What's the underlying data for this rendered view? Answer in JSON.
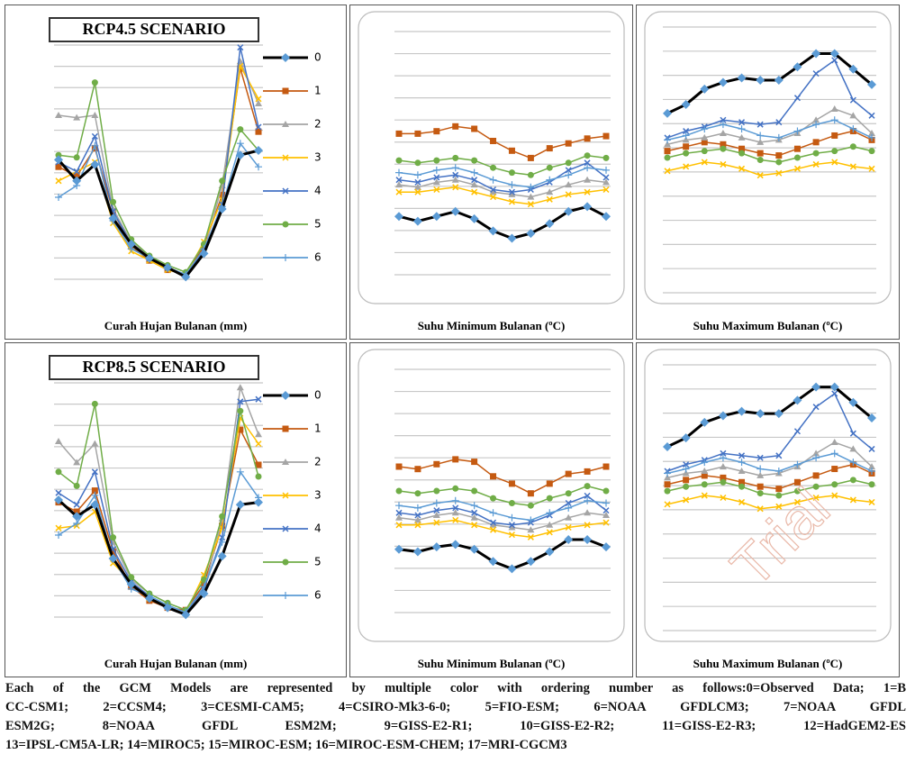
{
  "chart_data": [
    {
      "type": "line",
      "title": "RCP4.5 SCENARIO",
      "xlabel": "Curah Hujan Bulanan (mm)",
      "legend": true,
      "categories": [
        null,
        null,
        null,
        null,
        null,
        null,
        null,
        null,
        null,
        null,
        null,
        null
      ],
      "ylim": [
        0,
        10
      ],
      "series": [
        {
          "name": "0",
          "color": "#000000",
          "marker": "diamond",
          "marker_color": "#5b9bd5",
          "values": [
            5.1,
            4.2,
            4.9,
            2.6,
            1.5,
            0.9,
            0.5,
            0.1,
            1.1,
            3.0,
            5.3,
            5.5
          ]
        },
        {
          "name": "1",
          "color": "#c55a11",
          "marker": "square",
          "values": [
            4.8,
            4.4,
            5.6,
            2.9,
            1.4,
            0.8,
            0.4,
            0.2,
            1.4,
            3.6,
            9.0,
            6.3
          ]
        },
        {
          "name": "2",
          "color": "#a5a5a5",
          "marker": "triangle",
          "values": [
            7.0,
            6.9,
            7.0,
            3.0,
            1.6,
            1.0,
            0.6,
            0.3,
            1.2,
            4.0,
            9.3,
            7.5
          ]
        },
        {
          "name": "3",
          "color": "#ffc000",
          "marker": "x",
          "values": [
            4.2,
            4.6,
            5.0,
            2.4,
            1.2,
            0.8,
            0.4,
            0.2,
            1.6,
            3.4,
            9.1,
            7.7
          ]
        },
        {
          "name": "4",
          "color": "#4472c4",
          "marker": "x",
          "values": [
            5.0,
            4.6,
            6.1,
            2.9,
            1.5,
            0.9,
            0.5,
            0.2,
            1.2,
            3.2,
            9.9,
            6.5
          ]
        },
        {
          "name": "5",
          "color": "#70ad47",
          "marker": "circle",
          "values": [
            5.3,
            5.2,
            8.4,
            3.3,
            1.7,
            1.0,
            0.6,
            0.3,
            1.5,
            4.2,
            6.4,
            5.5
          ]
        },
        {
          "name": "6",
          "color": "#5b9bd5",
          "marker": "plus",
          "values": [
            3.5,
            4.0,
            5.7,
            2.5,
            1.3,
            0.9,
            0.5,
            0.2,
            1.3,
            3.1,
            5.8,
            4.8
          ]
        }
      ]
    },
    {
      "type": "line",
      "xlabel": "Suhu Minimum Bulanan (ºC)",
      "legend": false,
      "categories": [
        null,
        null,
        null,
        null,
        null,
        null,
        null,
        null,
        null,
        null,
        null,
        null
      ],
      "ylim": [
        0,
        10
      ],
      "series": [
        {
          "color": "#000000",
          "marker": "diamond",
          "marker_color": "#5b9bd5",
          "values": [
            2.4,
            2.2,
            2.4,
            2.6,
            2.3,
            1.8,
            1.5,
            1.7,
            2.1,
            2.6,
            2.8,
            2.4
          ]
        },
        {
          "color": "#c55a11",
          "marker": "square",
          "values": [
            5.8,
            5.8,
            5.9,
            6.1,
            6.0,
            5.5,
            5.1,
            4.8,
            5.2,
            5.4,
            5.6,
            5.7
          ]
        },
        {
          "color": "#a5a5a5",
          "marker": "triangle",
          "values": [
            3.7,
            3.6,
            3.8,
            3.9,
            3.7,
            3.4,
            3.3,
            3.2,
            3.4,
            3.7,
            3.9,
            3.8
          ]
        },
        {
          "color": "#ffc000",
          "marker": "x",
          "values": [
            3.4,
            3.4,
            3.5,
            3.6,
            3.4,
            3.2,
            3.0,
            2.9,
            3.1,
            3.3,
            3.4,
            3.5
          ]
        },
        {
          "color": "#4472c4",
          "marker": "x",
          "values": [
            3.9,
            3.8,
            4.0,
            4.1,
            3.9,
            3.5,
            3.4,
            3.5,
            3.8,
            4.3,
            4.6,
            4.0
          ]
        },
        {
          "color": "#70ad47",
          "marker": "circle",
          "values": [
            4.7,
            4.6,
            4.7,
            4.8,
            4.7,
            4.4,
            4.2,
            4.1,
            4.4,
            4.6,
            4.9,
            4.8
          ]
        },
        {
          "color": "#5b9bd5",
          "marker": "plus",
          "values": [
            4.2,
            4.1,
            4.3,
            4.4,
            4.2,
            3.9,
            3.7,
            3.6,
            3.9,
            4.1,
            4.4,
            4.3
          ]
        }
      ]
    },
    {
      "type": "line",
      "xlabel": "Suhu Maximum Bulanan (ºC)",
      "legend": false,
      "categories": [
        null,
        null,
        null,
        null,
        null,
        null,
        null,
        null,
        null,
        null,
        null,
        null
      ],
      "ylim": [
        0,
        12
      ],
      "series": [
        {
          "color": "#000000",
          "marker": "diamond",
          "marker_color": "#5b9bd5",
          "values": [
            8.1,
            8.5,
            9.2,
            9.5,
            9.7,
            9.6,
            9.6,
            10.2,
            10.8,
            10.8,
            10.1,
            9.4
          ]
        },
        {
          "color": "#c55a11",
          "marker": "square",
          "values": [
            6.4,
            6.6,
            6.8,
            6.7,
            6.5,
            6.3,
            6.2,
            6.5,
            6.8,
            7.1,
            7.3,
            6.9
          ]
        },
        {
          "color": "#a5a5a5",
          "marker": "triangle",
          "values": [
            6.7,
            6.9,
            7.0,
            7.2,
            7.0,
            6.8,
            6.9,
            7.2,
            7.8,
            8.3,
            8.0,
            7.2
          ]
        },
        {
          "color": "#ffc000",
          "marker": "x",
          "values": [
            5.5,
            5.7,
            5.9,
            5.8,
            5.6,
            5.3,
            5.4,
            5.6,
            5.8,
            5.9,
            5.7,
            5.6
          ]
        },
        {
          "color": "#4472c4",
          "marker": "x",
          "values": [
            7.0,
            7.3,
            7.5,
            7.8,
            7.7,
            7.6,
            7.7,
            8.8,
            9.9,
            10.5,
            8.7,
            8.0
          ]
        },
        {
          "color": "#70ad47",
          "marker": "circle",
          "values": [
            6.1,
            6.3,
            6.4,
            6.5,
            6.3,
            6.0,
            5.9,
            6.1,
            6.3,
            6.4,
            6.6,
            6.4
          ]
        },
        {
          "color": "#5b9bd5",
          "marker": "plus",
          "values": [
            6.9,
            7.1,
            7.4,
            7.6,
            7.4,
            7.1,
            7.0,
            7.3,
            7.6,
            7.8,
            7.4,
            7.0
          ]
        }
      ]
    },
    {
      "type": "line",
      "title": "RCP8.5 SCENARIO",
      "xlabel": "Curah Hujan Bulanan (mm)",
      "legend": true,
      "categories": [
        null,
        null,
        null,
        null,
        null,
        null,
        null,
        null,
        null,
        null,
        null,
        null
      ],
      "ylim": [
        0,
        10
      ],
      "series": [
        {
          "name": "0",
          "color": "#000000",
          "marker": "diamond",
          "marker_color": "#5b9bd5",
          "values": [
            5.0,
            4.3,
            4.8,
            2.5,
            1.4,
            0.8,
            0.4,
            0.1,
            1.0,
            2.6,
            4.8,
            4.9
          ]
        },
        {
          "name": "1",
          "color": "#c55a11",
          "marker": "square",
          "values": [
            4.9,
            4.5,
            5.4,
            2.8,
            1.3,
            0.7,
            0.4,
            0.3,
            1.4,
            3.9,
            8.0,
            6.5
          ]
        },
        {
          "name": "2",
          "color": "#a5a5a5",
          "marker": "triangle",
          "values": [
            7.5,
            6.6,
            7.4,
            3.2,
            1.6,
            1.0,
            0.6,
            0.3,
            1.1,
            4.2,
            9.8,
            7.8
          ]
        },
        {
          "name": "3",
          "color": "#ffc000",
          "marker": "x",
          "values": [
            3.8,
            3.9,
            4.5,
            2.3,
            1.5,
            0.8,
            0.5,
            0.2,
            1.8,
            3.8,
            8.5,
            7.4
          ]
        },
        {
          "name": "4",
          "color": "#4472c4",
          "marker": "x",
          "values": [
            5.3,
            4.8,
            6.2,
            2.9,
            1.5,
            0.9,
            0.5,
            0.2,
            1.2,
            3.4,
            9.2,
            9.3
          ]
        },
        {
          "name": "5",
          "color": "#70ad47",
          "marker": "circle",
          "values": [
            6.2,
            5.6,
            9.1,
            3.4,
            1.7,
            1.0,
            0.6,
            0.3,
            1.6,
            4.3,
            8.8,
            6.0
          ]
        },
        {
          "name": "6",
          "color": "#5b9bd5",
          "marker": "plus",
          "values": [
            3.5,
            4.0,
            5.2,
            2.5,
            1.2,
            0.9,
            0.5,
            0.2,
            1.3,
            3.2,
            6.2,
            5.1
          ]
        }
      ]
    },
    {
      "type": "line",
      "xlabel": "Suhu Minimum Bulanan (ºC)",
      "legend": false,
      "categories": [
        null,
        null,
        null,
        null,
        null,
        null,
        null,
        null,
        null,
        null,
        null,
        null
      ],
      "ylim": [
        0,
        10
      ],
      "series": [
        {
          "color": "#000000",
          "marker": "diamond",
          "marker_color": "#5b9bd5",
          "values": [
            2.6,
            2.5,
            2.7,
            2.8,
            2.6,
            2.1,
            1.8,
            2.1,
            2.5,
            3.0,
            3.0,
            2.7
          ]
        },
        {
          "color": "#c55a11",
          "marker": "square",
          "values": [
            6.0,
            5.9,
            6.1,
            6.3,
            6.2,
            5.6,
            5.3,
            4.9,
            5.3,
            5.7,
            5.8,
            6.0
          ]
        },
        {
          "color": "#a5a5a5",
          "marker": "triangle",
          "values": [
            3.9,
            3.8,
            4.0,
            4.1,
            3.9,
            3.6,
            3.5,
            3.4,
            3.6,
            3.9,
            4.1,
            4.0
          ]
        },
        {
          "color": "#ffc000",
          "marker": "x",
          "values": [
            3.6,
            3.6,
            3.7,
            3.8,
            3.6,
            3.4,
            3.2,
            3.1,
            3.3,
            3.5,
            3.6,
            3.7
          ]
        },
        {
          "color": "#4472c4",
          "marker": "x",
          "values": [
            4.1,
            4.0,
            4.2,
            4.3,
            4.1,
            3.7,
            3.6,
            3.7,
            4.0,
            4.5,
            4.8,
            4.2
          ]
        },
        {
          "color": "#70ad47",
          "marker": "circle",
          "values": [
            5.0,
            4.9,
            5.0,
            5.1,
            5.0,
            4.7,
            4.5,
            4.4,
            4.7,
            4.9,
            5.2,
            5.0
          ]
        },
        {
          "color": "#5b9bd5",
          "marker": "plus",
          "values": [
            4.4,
            4.3,
            4.5,
            4.6,
            4.4,
            4.1,
            3.9,
            3.8,
            4.1,
            4.3,
            4.6,
            4.5
          ]
        }
      ]
    },
    {
      "type": "line",
      "xlabel": "Suhu Maximum Bulanan (ºC)",
      "legend": false,
      "categories": [
        null,
        null,
        null,
        null,
        null,
        null,
        null,
        null,
        null,
        null,
        null,
        null
      ],
      "ylim": [
        0,
        12
      ],
      "series": [
        {
          "color": "#000000",
          "marker": "diamond",
          "marker_color": "#5b9bd5",
          "values": [
            8.3,
            8.7,
            9.4,
            9.7,
            9.9,
            9.8,
            9.8,
            10.4,
            11.0,
            11.0,
            10.3,
            9.6
          ]
        },
        {
          "color": "#c55a11",
          "marker": "square",
          "values": [
            6.6,
            6.8,
            7.0,
            6.9,
            6.7,
            6.5,
            6.4,
            6.7,
            7.0,
            7.3,
            7.5,
            7.1
          ]
        },
        {
          "color": "#a5a5a5",
          "marker": "triangle",
          "values": [
            6.9,
            7.1,
            7.2,
            7.4,
            7.2,
            7.0,
            7.1,
            7.4,
            8.0,
            8.5,
            8.2,
            7.4
          ]
        },
        {
          "color": "#ffc000",
          "marker": "x",
          "values": [
            5.7,
            5.9,
            6.1,
            6.0,
            5.8,
            5.5,
            5.6,
            5.8,
            6.0,
            6.1,
            5.9,
            5.8
          ]
        },
        {
          "color": "#4472c4",
          "marker": "x",
          "values": [
            7.2,
            7.5,
            7.7,
            8.0,
            7.9,
            7.8,
            7.9,
            9.0,
            10.1,
            10.7,
            8.9,
            8.2
          ]
        },
        {
          "color": "#70ad47",
          "marker": "circle",
          "values": [
            6.3,
            6.5,
            6.6,
            6.7,
            6.5,
            6.2,
            6.1,
            6.3,
            6.5,
            6.6,
            6.8,
            6.6
          ]
        },
        {
          "color": "#5b9bd5",
          "marker": "plus",
          "values": [
            7.1,
            7.3,
            7.6,
            7.8,
            7.6,
            7.3,
            7.2,
            7.5,
            7.8,
            8.0,
            7.6,
            7.2
          ]
        }
      ]
    }
  ],
  "caption": [
    "Each of the GCM Models are represented by multiple color with ordering number as follows:0=Observed Data; 1=B",
    "CC-CSM1; 2=CCSM4; 3=CESMI-CAM5; 4=CSIRO-Mk3-6-0; 5=FIO-ESM; 6=NOAA GFDLCM3; 7=NOAA GFDL",
    "ESM2G; 8=NOAA GFDL ESM2M; 9=GISS-E2-R1; 10=GISS-E2-R2; 11=GISS-E2-R3; 12=HadGEM2-ES",
    "13=IPSL-CM5A-LR; 14=MIROC5; 15=MIROC-ESM; 16=MIROC-ESM-CHEM; 17=MRI-CGCM3"
  ],
  "watermark": "Trial"
}
